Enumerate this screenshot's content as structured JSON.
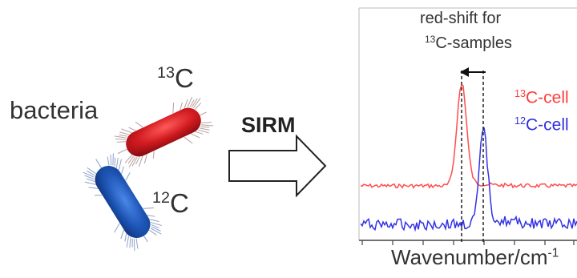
{
  "left": {
    "label": "bacteria",
    "c13": {
      "mass": "13",
      "element": "C"
    },
    "c12": {
      "mass": "12",
      "element": "C"
    }
  },
  "arrow": {
    "label": "SIRM"
  },
  "spectrum": {
    "annotation_line1": "red-shift for",
    "annotation_line2_mass": "13",
    "annotation_line2_text": "C-samples",
    "legend_13_mass": "13",
    "legend_13_text": "C-cell",
    "legend_12_mass": "12",
    "legend_12_text": "C-cell",
    "xlabel_text": "Wavenumber/cm",
    "xlabel_exp": "-1"
  },
  "colors": {
    "c13": "#ff4d4d",
    "c12": "#3333e6",
    "bacterium_red": "#c8151b",
    "bacterium_blue": "#1c4fa8"
  }
}
